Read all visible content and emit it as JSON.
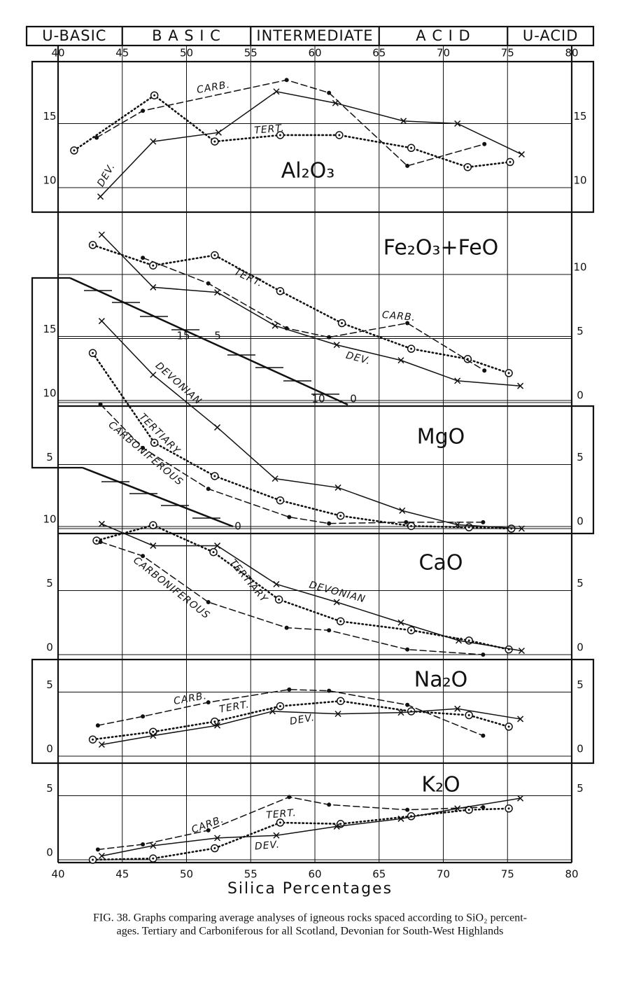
{
  "axis": {
    "xlim": [
      40,
      80
    ],
    "xticks": [
      40,
      45,
      50,
      55,
      60,
      65,
      70,
      75,
      80
    ],
    "xlabel": "Silica Percentages",
    "zone_labels": [
      "U-BASIC",
      "B A S I C",
      "INTERMEDIATE",
      "A C I D",
      "U-ACID"
    ],
    "zone_bounds": [
      45,
      55,
      65,
      75
    ]
  },
  "conversion_scale_labels": [
    [
      15,
      5,
      10,
      0
    ],
    [
      0
    ]
  ],
  "caption": [
    "FIG. 38. Graphs comparing average analyses of igneous rocks spaced according to SiO₂ percent-",
    "ages. Tertiary and Carboniferous for all Scotland, Devonian for South-West Highlands"
  ],
  "chart_data": [
    {
      "type": "line",
      "title": "Al₂O₃",
      "ylim": [
        8,
        20
      ],
      "yticks": [
        10,
        15
      ],
      "y2lim": [
        8,
        20
      ],
      "y2ticks": [
        10,
        15
      ],
      "series": [
        {
          "name": "TERT.",
          "line": "dotted",
          "marker": "circle",
          "color": "#111",
          "x": [
            41.25,
            47.5,
            52.2,
            57.3,
            61.9,
            67.5,
            71.9,
            75.2
          ],
          "values": [
            12.9,
            17.2,
            13.6,
            14.1,
            14.1,
            13.1,
            11.6,
            12.0
          ]
        },
        {
          "name": "CARB.",
          "line": "dashed",
          "marker": "dot",
          "color": "#111",
          "x": [
            43,
            46.6,
            57.8,
            61.1,
            67.2,
            73.2
          ],
          "values": [
            13.9,
            16.0,
            18.4,
            17.4,
            11.7,
            13.4
          ]
        },
        {
          "name": "DEV.",
          "line": "solid",
          "marker": "x",
          "color": "#111",
          "x": [
            43.3,
            47.4,
            52.5,
            57,
            61.6,
            66.9,
            71.1,
            76.1
          ],
          "values": [
            9.3,
            13.6,
            14.3,
            17.5,
            16.6,
            15.2,
            15.0,
            12.6
          ]
        }
      ]
    },
    {
      "type": "line",
      "title": "Fe₂O₃+FeO",
      "ylim": [
        0,
        14
      ],
      "yticks": [],
      "y2lim": [
        0,
        14
      ],
      "y2ticks": [
        0,
        5,
        10
      ],
      "series": [
        {
          "name": "TERT.",
          "line": "dotted",
          "marker": "circle",
          "color": "#111",
          "x": [
            42.7,
            47.4,
            52.2,
            57.3,
            62.1,
            67.5,
            71.9,
            75.1
          ],
          "values": [
            12.3,
            10.7,
            11.5,
            8.7,
            6.2,
            4.2,
            3.4,
            2.3
          ]
        },
        {
          "name": "CARB.",
          "line": "dashed",
          "marker": "dot",
          "color": "#111",
          "x": [
            46.6,
            51.7,
            57.8,
            61.1,
            67.2,
            73.2
          ],
          "values": [
            11.3,
            9.3,
            5.8,
            5.1,
            6.2,
            2.5
          ]
        },
        {
          "name": "DEV.",
          "line": "solid",
          "marker": "x",
          "color": "#111",
          "x": [
            43.4,
            47.4,
            52.4,
            56.9,
            61.7,
            66.7,
            71.1,
            76.0
          ],
          "values": [
            13.1,
            9.0,
            8.6,
            6.0,
            4.5,
            3.3,
            1.7,
            1.3
          ]
        }
      ]
    },
    {
      "type": "line",
      "title": "MgO",
      "ylim": [
        0,
        17
      ],
      "yticks": [
        5,
        10,
        15
      ],
      "y2lim": [
        0,
        17
      ],
      "y2ticks": [
        0,
        5
      ],
      "series": [
        {
          "name": "TERTIARY",
          "line": "dotted",
          "marker": "circle",
          "color": "#111",
          "x": [
            42.7,
            47.5,
            52.2,
            57.3,
            62,
            67.5,
            72,
            75.3
          ],
          "values": [
            13.7,
            6.7,
            4.1,
            2.2,
            1.0,
            0.2,
            0.1,
            0
          ]
        },
        {
          "name": "CARBONIFEROUS",
          "line": "dashed",
          "marker": "dot",
          "color": "#111",
          "x": [
            43.3,
            46.6,
            51.7,
            58,
            61.1,
            67.1,
            73.1
          ],
          "values": [
            9.7,
            6.3,
            3.1,
            0.9,
            0.4,
            0.5,
            0.5
          ]
        },
        {
          "name": "DEVONIAN",
          "line": "solid",
          "marker": "x",
          "color": "#111",
          "x": [
            43.4,
            47.4,
            52.4,
            56.9,
            61.8,
            66.8,
            71.1,
            76.1
          ],
          "values": [
            16.2,
            12.0,
            7.9,
            3.9,
            3.2,
            1.4,
            0.3,
            0
          ]
        }
      ]
    },
    {
      "type": "line",
      "title": "CaO",
      "ylim": [
        0,
        11
      ],
      "yticks": [
        0,
        5,
        10
      ],
      "y2lim": [
        0,
        11
      ],
      "y2ticks": [
        0,
        5
      ],
      "series": [
        {
          "name": "TERTIARY",
          "line": "dotted",
          "marker": "circle",
          "color": "#111",
          "x": [
            43,
            47.4,
            52.1,
            57.2,
            62,
            67.5,
            72,
            75.1
          ],
          "values": [
            8.9,
            10.1,
            8.0,
            4.3,
            2.6,
            1.9,
            1.1,
            0.4
          ]
        },
        {
          "name": "CARBONIFEROUS",
          "line": "dashed",
          "marker": "dot",
          "color": "#111",
          "x": [
            43.3,
            46.6,
            51.7,
            57.8,
            61.1,
            67.2,
            73.1
          ],
          "values": [
            8.8,
            7.7,
            4.1,
            2.1,
            1.9,
            0.4,
            0
          ]
        },
        {
          "name": "DEVONIAN",
          "line": "solid",
          "marker": "x",
          "color": "#111",
          "x": [
            43.4,
            47.4,
            52.4,
            57,
            61.7,
            66.7,
            71.2,
            76.1
          ],
          "values": [
            10.2,
            8.5,
            8.5,
            5.5,
            4.1,
            2.5,
            1.1,
            0.3
          ]
        }
      ]
    },
    {
      "type": "line",
      "title": "Na₂O",
      "ylim": [
        0,
        6
      ],
      "yticks": [
        0,
        5
      ],
      "y2lim": [
        0,
        6
      ],
      "y2ticks": [
        0,
        5
      ],
      "series": [
        {
          "name": "TERT.",
          "line": "dotted",
          "marker": "circle",
          "color": "#111",
          "x": [
            42.7,
            47.4,
            52.2,
            57.3,
            62,
            67.5,
            72,
            75.1
          ],
          "values": [
            1.3,
            1.9,
            2.7,
            3.9,
            4.3,
            3.5,
            3.2,
            2.3
          ]
        },
        {
          "name": "CARB.",
          "line": "dashed",
          "marker": "dot",
          "color": "#111",
          "x": [
            43.1,
            46.6,
            51.7,
            58,
            61.1,
            67.2,
            73.1
          ],
          "values": [
            2.4,
            3.1,
            4.2,
            5.2,
            5.1,
            4.0,
            1.6
          ]
        },
        {
          "name": "DEV.",
          "line": "solid",
          "marker": "x",
          "color": "#111",
          "x": [
            43.4,
            47.4,
            52.4,
            56.7,
            61.8,
            66.7,
            71.1,
            76
          ],
          "values": [
            0.9,
            1.6,
            2.4,
            3.5,
            3.3,
            3.4,
            3.7,
            2.9
          ]
        }
      ]
    },
    {
      "type": "line",
      "title": "K₂O",
      "ylim": [
        0,
        5.5
      ],
      "yticks": [
        0,
        5
      ],
      "y2lim": [
        0,
        5.5
      ],
      "y2ticks": [
        5
      ],
      "series": [
        {
          "name": "TERT.",
          "line": "dotted",
          "marker": "circle",
          "color": "#111",
          "x": [
            42.7,
            47.4,
            52.2,
            57.3,
            62,
            67.5,
            72,
            75.1
          ],
          "values": [
            0,
            0.1,
            0.9,
            2.9,
            2.8,
            3.4,
            3.9,
            4.0
          ]
        },
        {
          "name": "CARB.",
          "line": "dashed",
          "marker": "dot",
          "color": "#111",
          "x": [
            43.1,
            46.6,
            51.7,
            58,
            61.1,
            67.2,
            73.1
          ],
          "values": [
            0.8,
            1.2,
            2.3,
            4.9,
            4.3,
            3.9,
            4.1
          ]
        },
        {
          "name": "DEV.",
          "line": "solid",
          "marker": "x",
          "color": "#111",
          "x": [
            43.4,
            47.4,
            52.4,
            57,
            61.7,
            66.7,
            71.1,
            76
          ],
          "values": [
            0.3,
            1.1,
            1.7,
            1.9,
            2.6,
            3.2,
            4.0,
            4.8
          ]
        }
      ]
    }
  ]
}
